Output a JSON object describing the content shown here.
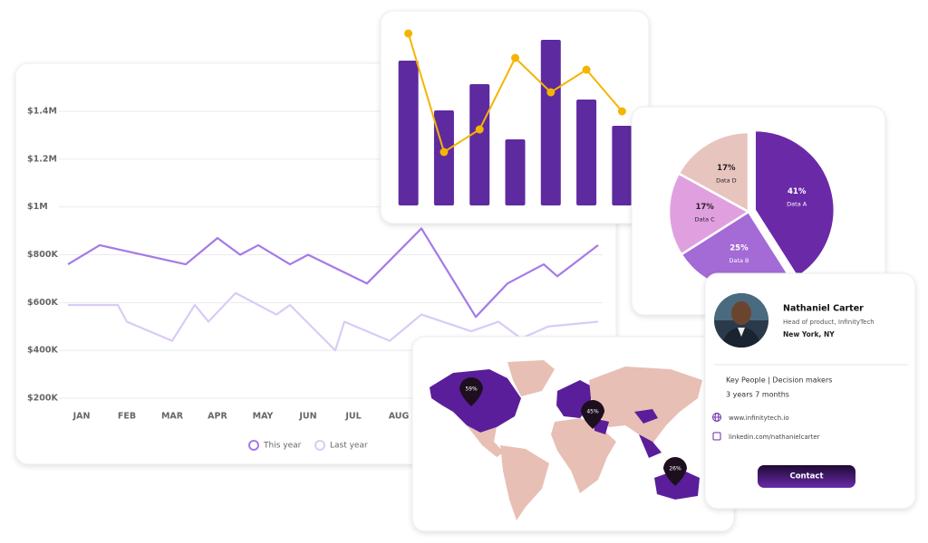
{
  "chart_data": [
    {
      "type": "line",
      "xlim": [
        -0.4,
        11.5
      ],
      "xticks": [
        {
          "value": 0,
          "label": "JAN"
        },
        {
          "value": 1,
          "label": "FEB"
        },
        {
          "value": 2,
          "label": "MAR"
        },
        {
          "value": 3,
          "label": "APR"
        },
        {
          "value": 4,
          "label": "MAY"
        },
        {
          "value": 5,
          "label": "JUN"
        },
        {
          "value": 6,
          "label": "JUL"
        },
        {
          "value": 7,
          "label": "AUG"
        }
      ],
      "ylim": [
        200000,
        1400000
      ],
      "yticks": [
        {
          "value": 200000,
          "label": "$200K"
        },
        {
          "value": 400000,
          "label": "$400K"
        },
        {
          "value": 600000,
          "label": "$600K"
        },
        {
          "value": 800000,
          "label": "$800K"
        },
        {
          "value": 1000000,
          "label": "$1M"
        },
        {
          "value": 1200000,
          "label": "$1.2M"
        },
        {
          "value": 1400000,
          "label": "$1.4M"
        }
      ],
      "grid": true,
      "series": [
        {
          "name": "This year",
          "color": "#a47ae8",
          "x": [
            -0.3,
            0.4,
            2.3,
            3,
            3.5,
            3.9,
            4.6,
            5,
            6.3,
            7.5,
            8.7,
            9.4,
            10.2,
            10.5,
            11.4
          ],
          "values": [
            760000,
            840000,
            760000,
            870000,
            800000,
            840000,
            760000,
            800000,
            680000,
            910000,
            540000,
            680000,
            760000,
            710000,
            840000
          ]
        },
        {
          "name": "Last year",
          "color": "#d9cbf6",
          "x": [
            -0.3,
            0.8,
            1,
            2,
            2.5,
            2.8,
            3.4,
            4.3,
            4.6,
            5.6,
            5.8,
            6.8,
            7.5,
            8.6,
            9.2,
            9.7,
            10.3,
            11.4
          ],
          "values": [
            590000,
            590000,
            520000,
            440000,
            590000,
            520000,
            640000,
            550000,
            590000,
            400000,
            520000,
            440000,
            550000,
            480000,
            520000,
            450000,
            500000,
            520000
          ]
        }
      ]
    },
    {
      "type": "bar",
      "categories": [
        null,
        null,
        null,
        null,
        null,
        null,
        null
      ],
      "ylim": [
        0,
        200
      ],
      "series": [
        {
          "type": "bar",
          "color": "#5e2a9f",
          "values": [
            160,
            105,
            134,
            73,
            183,
            117,
            88
          ]
        },
        {
          "type": "line",
          "color": "#f5b400",
          "values": [
            190,
            59,
            84,
            163,
            125,
            150,
            104
          ]
        }
      ]
    },
    {
      "type": "pie",
      "categories": [
        "Data A",
        "Data B",
        "Data C",
        "Data D"
      ],
      "values": [
        41,
        25,
        17,
        17
      ],
      "value_labels": [
        "41%",
        "25%",
        "17%",
        "17%"
      ],
      "colors": [
        "#6a2aa8",
        "#a46ad6",
        "#e0a0e0",
        "#e8c4be"
      ],
      "exploded": [
        true,
        false,
        false,
        false
      ]
    }
  ],
  "map": {
    "pins": [
      "59%",
      "45%",
      "26%"
    ]
  },
  "profile": {
    "name": "Nathaniel Carter",
    "role": "Head of product, InfinityTech",
    "location": "New York, NY",
    "segment": "Key People | Decision makers",
    "tenure": "3 years 7 months",
    "website": "www.infinitytech.io",
    "linkedin": "linkedin.com/nathanielcarter",
    "button": "Contact"
  }
}
